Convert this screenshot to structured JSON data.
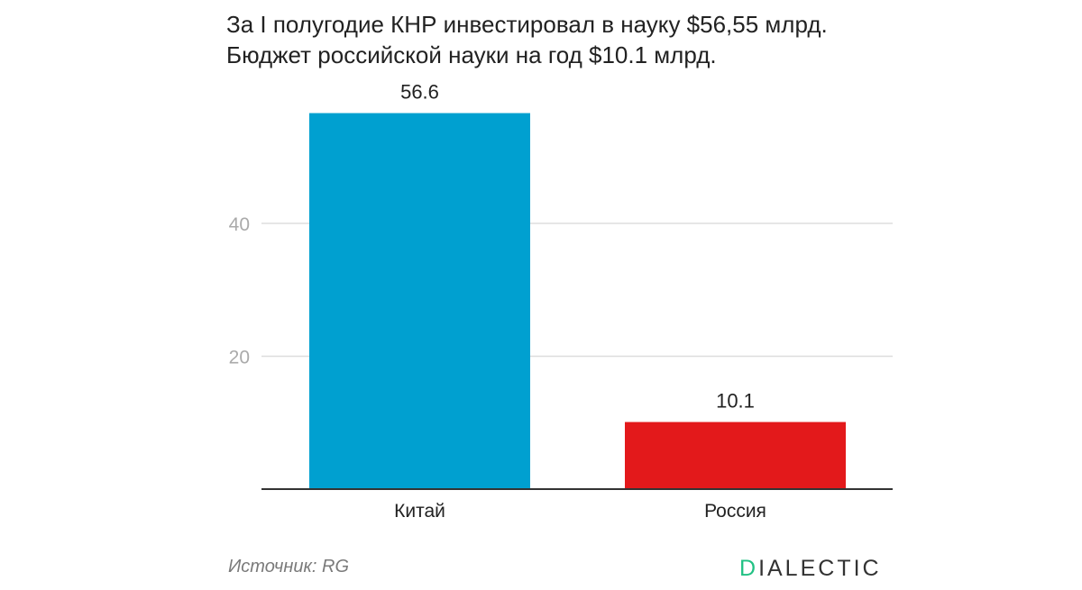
{
  "title_lines": [
    "За I полугодие КНР инвестировал в науку $56,55 млрд.",
    "Бюджет российской науки на год $10.1 млрд."
  ],
  "source": "Источник: RG",
  "logo": {
    "first_letter": "D",
    "rest": "IALECTIC"
  },
  "colors": {
    "china": "#00a0d0",
    "russia": "#e3191b",
    "grid": "#dddddd",
    "axis": "#333333"
  },
  "chart_data": {
    "type": "bar",
    "categories": [
      "Китай",
      "Россия"
    ],
    "values": [
      56.6,
      10.1
    ],
    "value_labels": [
      "56.6",
      "10.1"
    ],
    "yticks": [
      20,
      40
    ],
    "ylim": [
      0,
      60
    ],
    "grid": true,
    "xlabel": "",
    "ylabel": ""
  }
}
